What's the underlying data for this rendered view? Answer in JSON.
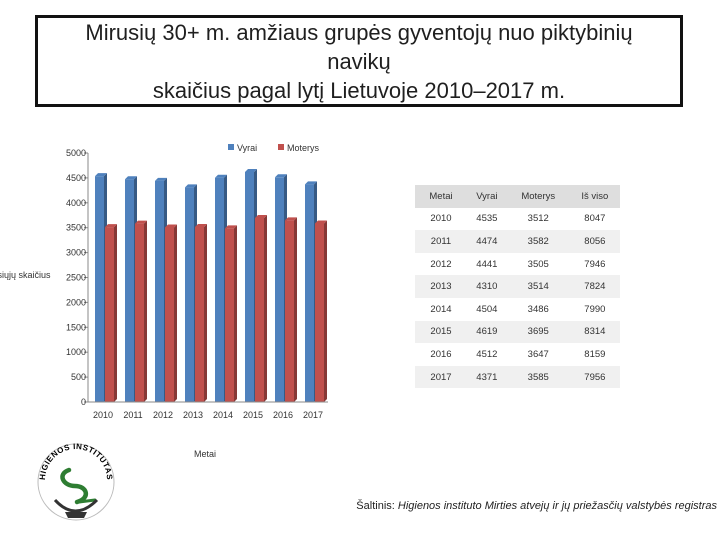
{
  "header": {
    "title": "Mirusių 30+ m. amžiaus grupės gyventojų nuo piktybinių navikų\nskaičius pagal lytį Lietuvoje 2010–2017 m."
  },
  "chart_data": {
    "type": "bar",
    "title": "",
    "xlabel": "Metai",
    "ylabel": "Mirusiųjų skaičius",
    "ylim": [
      0,
      5000
    ],
    "yticks": [
      0,
      500,
      1000,
      1500,
      2000,
      2500,
      3000,
      3500,
      4000,
      4500,
      5000
    ],
    "categories": [
      "2010",
      "2011",
      "2012",
      "2013",
      "2014",
      "2015",
      "2016",
      "2017"
    ],
    "series": [
      {
        "name": "Vyrai",
        "color": "#4f81bd",
        "values": [
          4535,
          4474,
          4441,
          4310,
          4504,
          4619,
          4512,
          4371
        ]
      },
      {
        "name": "Moterys",
        "color": "#c0504d",
        "values": [
          3512,
          3582,
          3505,
          3514,
          3486,
          3695,
          3647,
          3585
        ]
      }
    ],
    "legend": "top-center"
  },
  "table": {
    "headers": [
      "Metai",
      "Vyrai",
      "Moterys",
      "Iš viso"
    ],
    "rows": [
      [
        "2010",
        "4535",
        "3512",
        "8047"
      ],
      [
        "2011",
        "4474",
        "3582",
        "8056"
      ],
      [
        "2012",
        "4441",
        "3505",
        "7946"
      ],
      [
        "2013",
        "4310",
        "3514",
        "7824"
      ],
      [
        "2014",
        "4504",
        "3486",
        "7990"
      ],
      [
        "2015",
        "4619",
        "3695",
        "8314"
      ],
      [
        "2016",
        "4512",
        "3647",
        "8159"
      ],
      [
        "2017",
        "4371",
        "3585",
        "7956"
      ]
    ]
  },
  "logo": {
    "text": "HIGIENOS INSTITUTAS",
    "color": "#2e7d32"
  },
  "source": {
    "label": "Šaltinis: ",
    "text": "Higienos instituto Mirties atvejų ir jų priežasčių valstybės registras"
  }
}
